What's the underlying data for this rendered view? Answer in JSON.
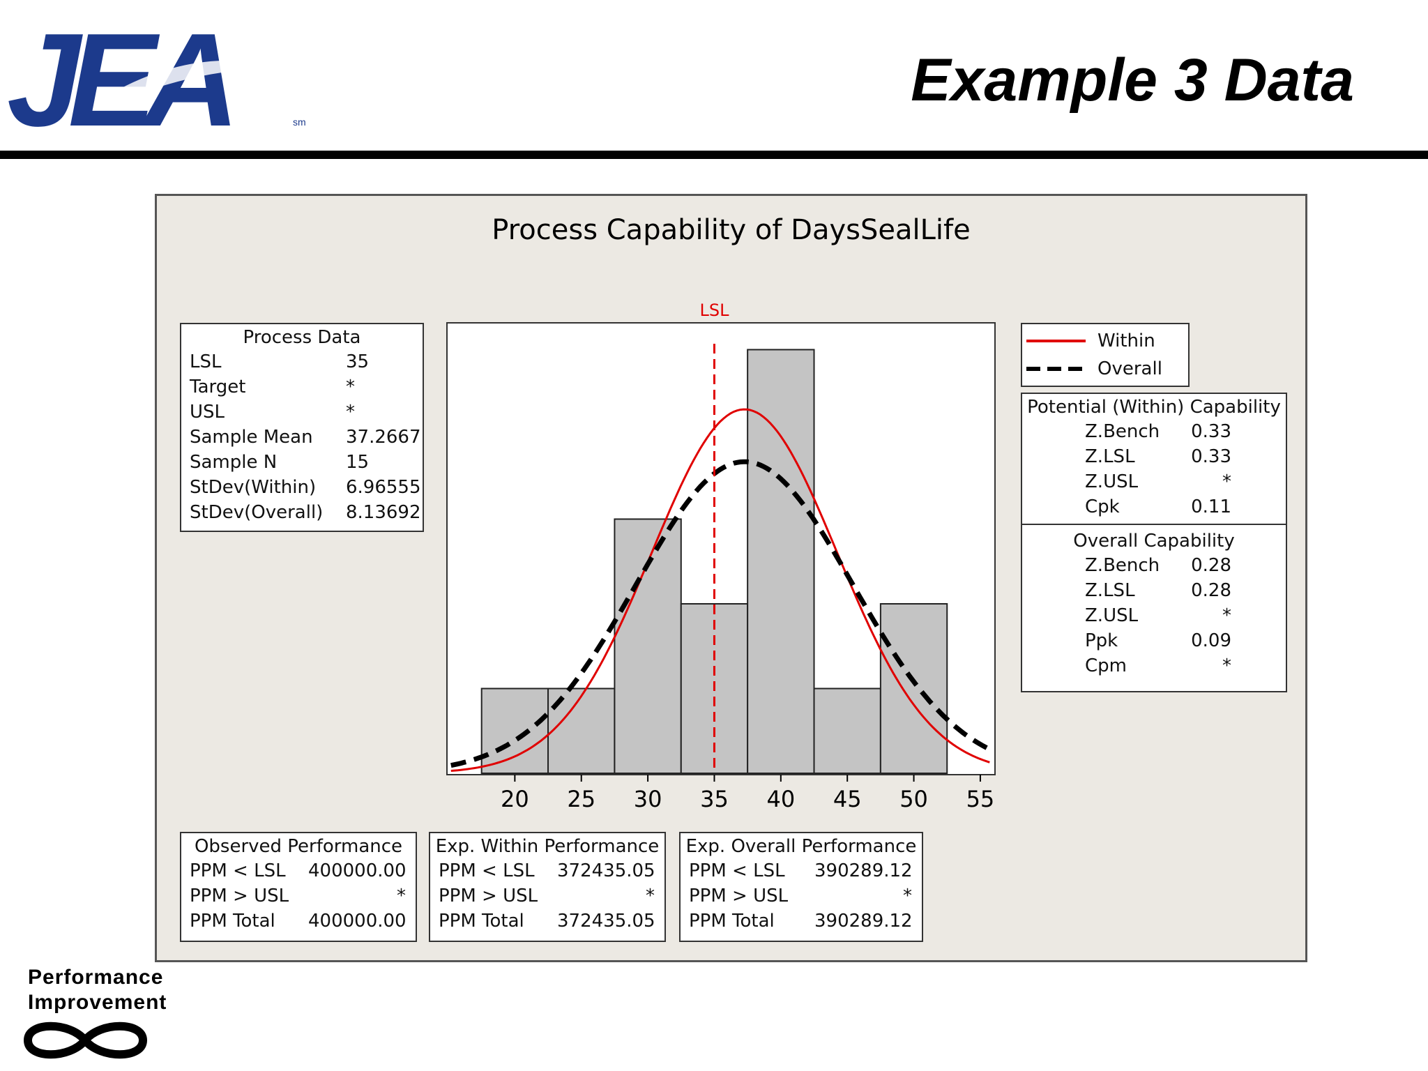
{
  "header": {
    "logo_text": "JEA",
    "logo_mark": "sm",
    "title": "Example 3 Data"
  },
  "footer": {
    "line1": "Performance",
    "line2": "Improvement",
    "icon": "infinity-icon"
  },
  "colors": {
    "within": "#e00000",
    "overall": "#000000",
    "bar_fill": "#c4c4c4",
    "lsl_line": "#e00000",
    "logo_blue": "#1c3a8c"
  },
  "process_data": {
    "title": "Process Data",
    "rows": [
      {
        "label": "LSL",
        "value": "35"
      },
      {
        "label": "Target",
        "value": "*"
      },
      {
        "label": "USL",
        "value": "*"
      },
      {
        "label": "Sample Mean",
        "value": "37.2667"
      },
      {
        "label": "Sample N",
        "value": "15"
      },
      {
        "label": "StDev(Within)",
        "value": "6.96555"
      },
      {
        "label": "StDev(Overall)",
        "value": "8.13692"
      }
    ]
  },
  "legend": {
    "within": "Within",
    "overall": "Overall"
  },
  "potential_capability": {
    "title": "Potential (Within) Capability",
    "rows": [
      {
        "label": "Z.Bench",
        "value": "0.33"
      },
      {
        "label": "Z.LSL",
        "value": "0.33"
      },
      {
        "label": "Z.USL",
        "value": "*"
      },
      {
        "label": "Cpk",
        "value": "0.11"
      }
    ]
  },
  "overall_capability": {
    "title": "Overall Capability",
    "rows": [
      {
        "label": "Z.Bench",
        "value": "0.28"
      },
      {
        "label": "Z.LSL",
        "value": "0.28"
      },
      {
        "label": "Z.USL",
        "value": "*"
      },
      {
        "label": "Ppk",
        "value": "0.09"
      },
      {
        "label": "Cpm",
        "value": "*"
      }
    ]
  },
  "observed_performance": {
    "title": "Observed Performance",
    "rows": [
      {
        "label": "PPM < LSL",
        "value": "400000.00"
      },
      {
        "label": "PPM > USL",
        "value": "*"
      },
      {
        "label": "PPM Total",
        "value": "400000.00"
      }
    ]
  },
  "exp_within_performance": {
    "title": "Exp. Within Performance",
    "rows": [
      {
        "label": "PPM < LSL",
        "value": "372435.05"
      },
      {
        "label": "PPM > USL",
        "value": "*"
      },
      {
        "label": "PPM Total",
        "value": "372435.05"
      }
    ]
  },
  "exp_overall_performance": {
    "title": "Exp. Overall Performance",
    "rows": [
      {
        "label": "PPM < LSL",
        "value": "390289.12"
      },
      {
        "label": "PPM > USL",
        "value": "*"
      },
      {
        "label": "PPM Total",
        "value": "390289.12"
      }
    ]
  },
  "chart_data": {
    "type": "bar",
    "title": "Process Capability of DaysSealLife",
    "xlabel": "",
    "ylabel": "",
    "bin_edges": [
      17.5,
      22.5,
      27.5,
      32.5,
      37.5,
      42.5,
      47.5,
      52.5
    ],
    "values": [
      1,
      1,
      3,
      2,
      5,
      1,
      2
    ],
    "xlim": [
      15,
      56
    ],
    "ylim": [
      0,
      5.3
    ],
    "x_ticks": [
      20,
      25,
      30,
      35,
      40,
      45,
      50,
      55
    ],
    "lsl": {
      "label": "LSL",
      "value": 35
    },
    "curves": [
      {
        "name": "Within",
        "mean": 37.2667,
        "stdev": 6.96555,
        "style": "solid"
      },
      {
        "name": "Overall",
        "mean": 37.2667,
        "stdev": 8.13692,
        "style": "dashed"
      }
    ],
    "sample_n": 15,
    "grid": false
  }
}
